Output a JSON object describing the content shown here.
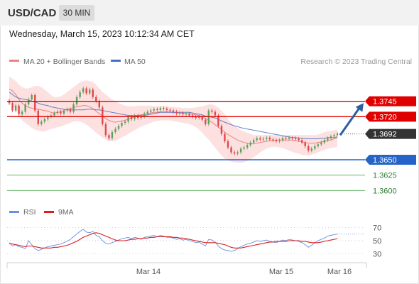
{
  "header": {
    "symbol": "USD/CAD",
    "interval": "30 MIN",
    "datetime": "Wednesday, March 15, 2023 10:12:34 AM CET"
  },
  "legend": {
    "ma20": "MA 20 + Bollinger Bands",
    "ma50": "MA 50",
    "copyright": "Research © 2023 Trading Central",
    "rsi": "RSI",
    "rsi9": "9MA"
  },
  "colors": {
    "band": "#fcd5d5",
    "ma20": "#f08080",
    "ma50": "#4a6fc2",
    "resistance": "#e00000",
    "pivot": "#2563c8",
    "support": "#4fa84f",
    "arrow": "#2b5fa3",
    "candle_up": "#5ea05e",
    "candle_down": "#e04848",
    "rsi_line": "#6b8fe0",
    "rsi_ma": "#d92020",
    "current_price_bg": "#333333"
  },
  "chart_data": [
    {
      "type": "candlestick",
      "y_domain": [
        1.3575,
        1.38
      ],
      "current_price": "1.3692",
      "x_tick_labels": [
        "Mar 14",
        "Mar 15",
        "Mar 16"
      ],
      "levels": [
        {
          "label": "1.3745",
          "value": 1.3745,
          "kind": "resistance"
        },
        {
          "label": "1.3720",
          "value": 1.372,
          "kind": "resistance"
        },
        {
          "label": "1.3650",
          "value": 1.365,
          "kind": "pivot"
        },
        {
          "label": "1.3625",
          "value": 1.3625,
          "kind": "support"
        },
        {
          "label": "1.3600",
          "value": 1.36,
          "kind": "support"
        }
      ],
      "close": [
        1.3742,
        1.373,
        1.3738,
        1.3724,
        1.3728,
        1.374,
        1.3748,
        1.3755,
        1.373,
        1.3708,
        1.3712,
        1.3716,
        1.372,
        1.3722,
        1.3726,
        1.3728,
        1.3725,
        1.373,
        1.3732,
        1.3728,
        1.374,
        1.3752,
        1.376,
        1.3766,
        1.3758,
        1.3764,
        1.3752,
        1.3745,
        1.3735,
        1.3708,
        1.369,
        1.3685,
        1.3695,
        1.37,
        1.3705,
        1.371,
        1.3712,
        1.372,
        1.3716,
        1.3722,
        1.3718,
        1.372,
        1.3725,
        1.3728,
        1.373,
        1.3732,
        1.3731,
        1.3734,
        1.3733,
        1.3731,
        1.373,
        1.3728,
        1.3725,
        1.3726,
        1.3724,
        1.3725,
        1.3722,
        1.372,
        1.3718,
        1.372,
        1.3715,
        1.3708,
        1.373,
        1.3728,
        1.3722,
        1.3705,
        1.3692,
        1.368,
        1.367,
        1.3662,
        1.366,
        1.3662,
        1.3668,
        1.367,
        1.3674,
        1.3678,
        1.3682,
        1.3685,
        1.3683,
        1.3684,
        1.3686,
        1.3683,
        1.3682,
        1.368,
        1.3682,
        1.3685,
        1.3684,
        1.3686,
        1.3685,
        1.3684,
        1.3682,
        1.3678,
        1.3672,
        1.3665,
        1.3668,
        1.3672,
        1.3675,
        1.3678,
        1.3682,
        1.3685,
        1.3688,
        1.369,
        1.3692
      ],
      "ma20": [
        1.3765,
        1.3762,
        1.3756,
        1.3748,
        1.3742,
        1.3738,
        1.3735,
        1.3734,
        1.3733,
        1.3732,
        1.3731,
        1.373,
        1.3729,
        1.3727,
        1.3726,
        1.3727,
        1.3728,
        1.373,
        1.3732,
        1.3733,
        1.3735,
        1.3736,
        1.3737,
        1.3738,
        1.3738,
        1.3736,
        1.3733,
        1.3729,
        1.3725,
        1.3721,
        1.3717,
        1.3714,
        1.3712,
        1.3711,
        1.3712,
        1.3713,
        1.3714,
        1.3716,
        1.3718,
        1.372,
        1.3722,
        1.3723,
        1.3724,
        1.3725,
        1.3726,
        1.3727,
        1.3727,
        1.3728,
        1.3728,
        1.3728,
        1.3728,
        1.3727,
        1.3727,
        1.3726,
        1.3726,
        1.3725,
        1.3725,
        1.3724,
        1.3723,
        1.3722,
        1.372,
        1.3717,
        1.3714,
        1.3711,
        1.3707,
        1.3703,
        1.3699,
        1.3695,
        1.3691,
        1.3688,
        1.3685,
        1.3682,
        1.368,
        1.3678,
        1.3677,
        1.3676,
        1.3676,
        1.3677,
        1.3678,
        1.3679,
        1.368,
        1.3681,
        1.3681,
        1.3682,
        1.3682,
        1.3682,
        1.3682,
        1.3682,
        1.3682,
        1.3681,
        1.368,
        1.3679,
        1.3678,
        1.3677,
        1.3677,
        1.3677,
        1.3678,
        1.3679,
        1.368,
        1.3681,
        1.3682,
        1.3684,
        1.3686
      ],
      "band_upper": [
        1.3785,
        1.3782,
        1.3778,
        1.3772,
        1.3768,
        1.3766,
        1.3766,
        1.3768,
        1.377,
        1.377,
        1.3768,
        1.3764,
        1.376,
        1.3755,
        1.3752,
        1.3752,
        1.3753,
        1.3756,
        1.376,
        1.3764,
        1.3768,
        1.3772,
        1.3776,
        1.3778,
        1.3779,
        1.3778,
        1.3776,
        1.3772,
        1.3766,
        1.376,
        1.3756,
        1.3752,
        1.3748,
        1.3745,
        1.3742,
        1.374,
        1.3738,
        1.3737,
        1.3737,
        1.3737,
        1.3738,
        1.3738,
        1.3738,
        1.3738,
        1.3738,
        1.3737,
        1.3737,
        1.3737,
        1.3737,
        1.3737,
        1.3736,
        1.3736,
        1.3735,
        1.3735,
        1.3734,
        1.3734,
        1.3734,
        1.3734,
        1.3735,
        1.3736,
        1.3737,
        1.3738,
        1.374,
        1.374,
        1.3738,
        1.3735,
        1.373,
        1.3724,
        1.3716,
        1.371,
        1.3706,
        1.3702,
        1.3698,
        1.3696,
        1.3694,
        1.3692,
        1.369,
        1.369,
        1.369,
        1.369,
        1.369,
        1.369,
        1.369,
        1.369,
        1.369,
        1.369,
        1.369,
        1.369,
        1.369,
        1.369,
        1.369,
        1.369,
        1.369,
        1.369,
        1.369,
        1.369,
        1.3691,
        1.3693,
        1.3695,
        1.3696,
        1.3697,
        1.3698,
        1.3699
      ],
      "band_lower": [
        1.3742,
        1.3738,
        1.3732,
        1.3722,
        1.3714,
        1.371,
        1.3706,
        1.3702,
        1.3699,
        1.3697,
        1.3696,
        1.3696,
        1.3698,
        1.37,
        1.3701,
        1.3703,
        1.3704,
        1.3706,
        1.3708,
        1.371,
        1.3712,
        1.3713,
        1.3712,
        1.371,
        1.3707,
        1.3703,
        1.3699,
        1.3694,
        1.369,
        1.3686,
        1.3683,
        1.368,
        1.368,
        1.3681,
        1.3683,
        1.3686,
        1.3689,
        1.3692,
        1.3695,
        1.3698,
        1.3701,
        1.3704,
        1.3706,
        1.3708,
        1.371,
        1.3712,
        1.3713,
        1.3714,
        1.3714,
        1.3714,
        1.3714,
        1.3713,
        1.3712,
        1.3711,
        1.371,
        1.3709,
        1.3708,
        1.3706,
        1.3703,
        1.3699,
        1.3694,
        1.3688,
        1.3683,
        1.3676,
        1.367,
        1.3663,
        1.3657,
        1.3652,
        1.3649,
        1.3647,
        1.3646,
        1.3645,
        1.3645,
        1.3646,
        1.3648,
        1.3651,
        1.3654,
        1.3658,
        1.3662,
        1.3665,
        1.3668,
        1.367,
        1.3671,
        1.3671,
        1.367,
        1.3669,
        1.3667,
        1.3665,
        1.3663,
        1.3661,
        1.366,
        1.3658,
        1.3657,
        1.3657,
        1.3658,
        1.366,
        1.3662,
        1.3664,
        1.3666,
        1.3668,
        1.3669,
        1.367,
        1.3671
      ],
      "ma50": [
        1.376,
        1.3756,
        1.3752,
        1.375,
        1.3749,
        1.3748,
        1.3747,
        1.3745,
        1.3744,
        1.3742,
        1.374,
        1.3739,
        1.3738,
        1.3736,
        1.3735,
        1.3734,
        1.3733,
        1.3732,
        1.3731,
        1.3731,
        1.3731,
        1.3731,
        1.3731,
        1.3731,
        1.3732,
        1.3732,
        1.3732,
        1.3731,
        1.3731,
        1.373,
        1.3729,
        1.3728,
        1.3727,
        1.3726,
        1.3725,
        1.3724,
        1.3723,
        1.3722,
        1.3722,
        1.3722,
        1.3722,
        1.3722,
        1.3722,
        1.3723,
        1.3724,
        1.3725,
        1.3726,
        1.3727,
        1.3727,
        1.3727,
        1.3727,
        1.3727,
        1.3727,
        1.3727,
        1.3727,
        1.3727,
        1.3727,
        1.3726,
        1.3725,
        1.3724,
        1.3723,
        1.3721,
        1.372,
        1.3719,
        1.3718,
        1.3716,
        1.3713,
        1.3711,
        1.3709,
        1.3707,
        1.3705,
        1.3704,
        1.3702,
        1.3701,
        1.37,
        1.3699,
        1.3698,
        1.3697,
        1.3696,
        1.3695,
        1.3694,
        1.3693,
        1.3692,
        1.3691,
        1.369,
        1.3689,
        1.3688,
        1.3687,
        1.3686,
        1.3686,
        1.3685,
        1.3685,
        1.3684,
        1.3684,
        1.3684,
        1.3684,
        1.3684,
        1.3685,
        1.3685,
        1.3686,
        1.3686,
        1.3686,
        1.3687
      ]
    },
    {
      "type": "line",
      "title": "RSI",
      "y_domain": [
        20,
        80
      ],
      "y_tick_labels": [
        "70",
        "50",
        "30"
      ],
      "reference_levels": [
        70,
        50,
        30
      ],
      "series": [
        {
          "name": "RSI",
          "values": [
            47,
            42,
            44,
            41,
            40,
            38,
            50,
            44,
            38,
            35,
            37,
            39,
            41,
            42,
            43,
            44,
            45,
            47,
            49,
            52,
            56,
            60,
            64,
            67,
            63,
            62,
            64,
            58,
            56,
            50,
            46,
            45,
            47,
            49,
            51,
            53,
            54,
            55,
            53,
            55,
            54,
            52,
            55,
            56,
            57,
            58,
            56,
            58,
            57,
            55,
            55,
            54,
            52,
            53,
            51,
            52,
            50,
            49,
            47,
            48,
            45,
            42,
            52,
            51,
            48,
            42,
            38,
            36,
            35,
            34,
            35,
            38,
            41,
            43,
            45,
            46,
            48,
            50,
            49,
            50,
            51,
            49,
            48,
            47,
            49,
            51,
            50,
            52,
            51,
            50,
            49,
            47,
            44,
            40,
            43,
            47,
            50,
            52,
            54,
            57,
            58,
            59,
            60
          ]
        },
        {
          "name": "9MA",
          "values": [
            46,
            45,
            44,
            43,
            42,
            41,
            42,
            42,
            41,
            40,
            39,
            39,
            39,
            39,
            40,
            40,
            41,
            42,
            43,
            45,
            47,
            49,
            52,
            55,
            57,
            59,
            61,
            62,
            61,
            59,
            57,
            55,
            53,
            51,
            50,
            50,
            50,
            51,
            52,
            52,
            53,
            53,
            54,
            54,
            55,
            55,
            56,
            56,
            56,
            56,
            56,
            55,
            55,
            54,
            54,
            53,
            52,
            51,
            50,
            49,
            48,
            47,
            47,
            47,
            47,
            46,
            45,
            44,
            42,
            40,
            39,
            39,
            39,
            40,
            41,
            42,
            43,
            44,
            45,
            46,
            47,
            48,
            48,
            49,
            49,
            49,
            49,
            50,
            50,
            50,
            50,
            49,
            49,
            48,
            47,
            47,
            47,
            48,
            49,
            50,
            51,
            52,
            53
          ]
        }
      ],
      "x_tick_labels": [
        "Mar 14",
        "Mar 15",
        "Mar 16"
      ]
    }
  ]
}
